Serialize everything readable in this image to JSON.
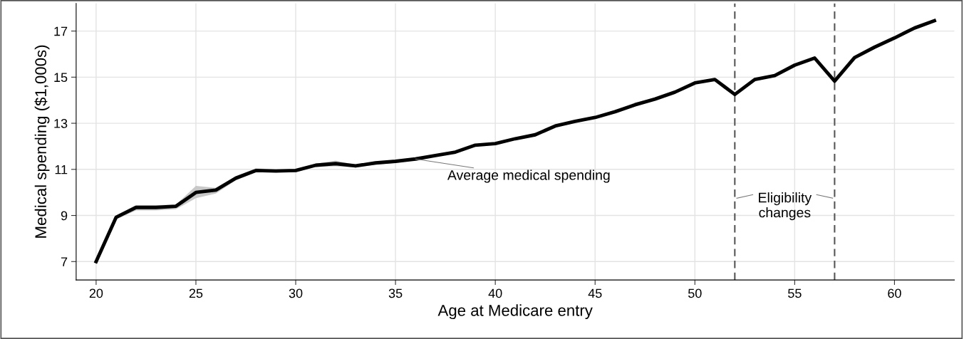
{
  "chart_data": {
    "type": "line",
    "xlabel": "Age at Medicare entry",
    "ylabel": "Medical spending ($1,000s)",
    "x": [
      20,
      21,
      22,
      23,
      24,
      25,
      26,
      27,
      28,
      29,
      30,
      31,
      32,
      33,
      34,
      35,
      36,
      37,
      38,
      39,
      40,
      41,
      42,
      43,
      44,
      45,
      46,
      47,
      48,
      49,
      50,
      51,
      52,
      53,
      54,
      55,
      56,
      57,
      58,
      59,
      60,
      61,
      62
    ],
    "series": [
      {
        "color": "#000000",
        "values": [
          7.0,
          8.92,
          9.35,
          9.35,
          9.4,
          10.0,
          10.1,
          10.62,
          10.95,
          10.93,
          10.95,
          11.18,
          11.25,
          11.15,
          11.28,
          11.35,
          11.45,
          11.6,
          11.75,
          12.05,
          12.12,
          12.33,
          12.5,
          12.88,
          13.08,
          13.25,
          13.5,
          13.8,
          14.05,
          14.35,
          14.75,
          14.9,
          14.25,
          14.9,
          15.07,
          15.52,
          15.83,
          14.83,
          15.85,
          16.3,
          16.7,
          17.13,
          17.45
        ],
        "lower": [
          6.95,
          8.82,
          9.22,
          9.22,
          9.27,
          9.75,
          9.95,
          10.52,
          10.87,
          10.87,
          10.87,
          11.1,
          11.13,
          11.08,
          11.2,
          11.28,
          11.4,
          11.55,
          11.7,
          12.0,
          12.07,
          12.28,
          12.45,
          12.83,
          13.03,
          13.2,
          13.45,
          13.72,
          14.0,
          14.3,
          14.7,
          14.85,
          14.2,
          14.85,
          15.02,
          15.47,
          15.78,
          14.78,
          15.8,
          16.25,
          16.65,
          17.08,
          17.4
        ],
        "upper": [
          7.05,
          9.0,
          9.45,
          9.45,
          9.47,
          10.28,
          10.2,
          10.7,
          11.05,
          11.0,
          11.0,
          11.25,
          11.38,
          11.2,
          11.33,
          11.4,
          11.5,
          11.65,
          11.8,
          12.1,
          12.17,
          12.38,
          12.55,
          12.93,
          13.13,
          13.3,
          13.55,
          13.9,
          14.1,
          14.4,
          14.8,
          14.95,
          14.3,
          14.95,
          15.12,
          15.57,
          15.88,
          14.88,
          15.9,
          16.35,
          16.75,
          17.18,
          17.5
        ]
      }
    ],
    "xlim": [
      19.0,
      63.0
    ],
    "xticks": [
      20,
      25,
      30,
      35,
      40,
      45,
      50,
      55,
      60
    ],
    "ylim": [
      6.2,
      18.2
    ],
    "yticks": [
      7,
      9,
      11,
      13,
      15,
      17
    ],
    "grid": true,
    "line_style": "solid",
    "marker": "none",
    "ref_lines": [
      {
        "axis": "x",
        "value": 52,
        "color": "#555555",
        "line_style": "dashed"
      },
      {
        "axis": "x",
        "value": 57,
        "color": "#555555",
        "line_style": "dashed"
      }
    ],
    "annotations": [
      {
        "text": "Average medical spending",
        "x": 36,
        "y": 11.45
      },
      {
        "text": "Eligibility changes",
        "x": 52,
        "y": 9.75
      }
    ]
  }
}
